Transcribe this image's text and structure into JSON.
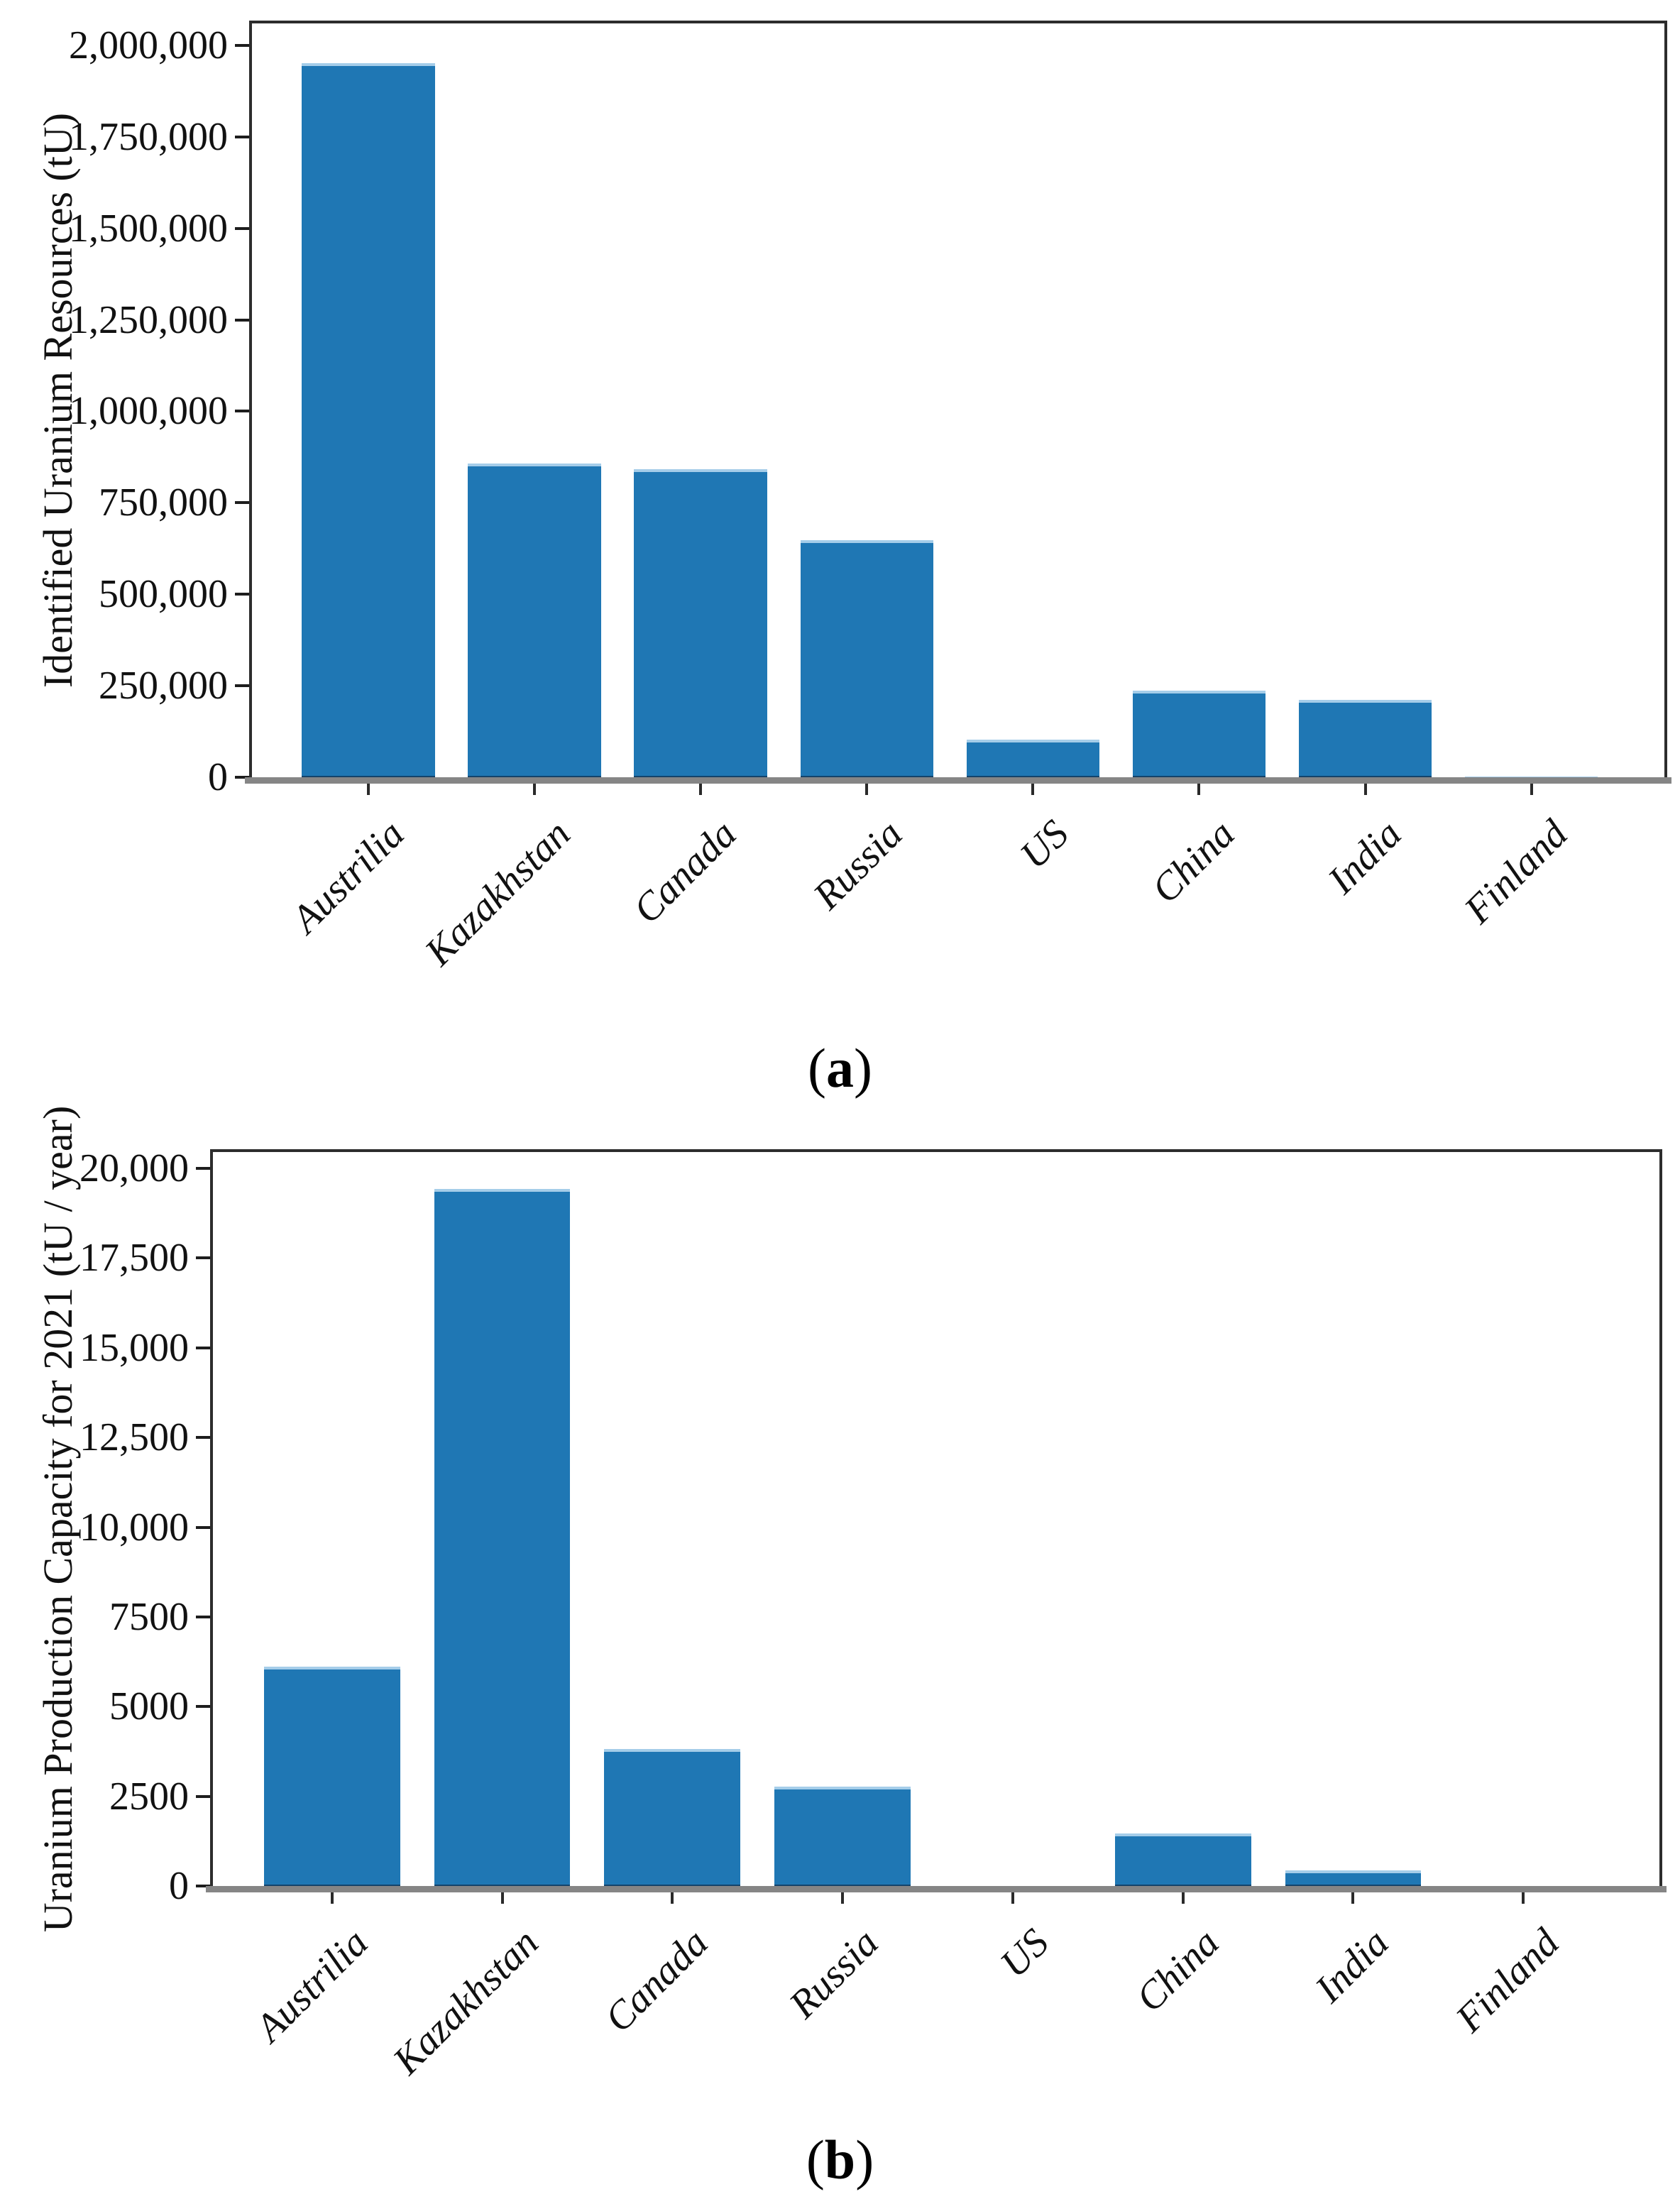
{
  "figure": {
    "background": "#ffffff",
    "bar_color": "#1f77b4",
    "axis_line_color": "#858585",
    "spine_color": "#2d2d2d"
  },
  "captions": {
    "a": {
      "open": "(",
      "letter": "a",
      "close": ")"
    },
    "b": {
      "open": "(",
      "letter": "b",
      "close": ")"
    }
  },
  "chart_data": [
    {
      "id": "a",
      "type": "bar",
      "title": "",
      "xlabel": "",
      "ylabel": "Identified Uranium Resources (tU)",
      "categories": [
        "Austrilia",
        "Kazakhstan",
        "Canada",
        "Russia",
        "US",
        "China",
        "India",
        "Finland"
      ],
      "values": [
        1960000,
        865000,
        850000,
        655000,
        110000,
        245000,
        220000,
        10000
      ],
      "ylim": [
        0,
        2060000
      ],
      "yticks": [
        {
          "value": 0,
          "label": "0"
        },
        {
          "value": 250000,
          "label": "250,000"
        },
        {
          "value": 500000,
          "label": "500,000"
        },
        {
          "value": 750000,
          "label": "750,000"
        },
        {
          "value": 1000000,
          "label": "1,000,000"
        },
        {
          "value": 1250000,
          "label": "1,250,000"
        },
        {
          "value": 1500000,
          "label": "1,500,000"
        },
        {
          "value": 1750000,
          "label": "1,750,000"
        },
        {
          "value": 2000000,
          "label": "2,000,000"
        }
      ],
      "grid": false,
      "legend": null,
      "bar_color": "#1f77b4",
      "caption": "(a)"
    },
    {
      "id": "b",
      "type": "bar",
      "title": "",
      "xlabel": "",
      "ylabel": "Uranium Production Capacity for 2021 (tU / year)",
      "categories": [
        "Austrilia",
        "Kazakhstan",
        "Canada",
        "Russia",
        "US",
        "China",
        "India",
        "Finland"
      ],
      "values": [
        6200,
        19500,
        3900,
        2850,
        0,
        1550,
        520,
        0
      ],
      "ylim": [
        0,
        20455
      ],
      "yticks": [
        {
          "value": 0,
          "label": "0"
        },
        {
          "value": 2500,
          "label": "2500"
        },
        {
          "value": 5000,
          "label": "5000"
        },
        {
          "value": 7500,
          "label": "7500"
        },
        {
          "value": 10000,
          "label": "10,000"
        },
        {
          "value": 12500,
          "label": "12,500"
        },
        {
          "value": 15000,
          "label": "15,000"
        },
        {
          "value": 17500,
          "label": "17,500"
        },
        {
          "value": 20000,
          "label": "20,000"
        }
      ],
      "grid": false,
      "legend": null,
      "bar_color": "#1f77b4",
      "caption": "(b)"
    }
  ]
}
